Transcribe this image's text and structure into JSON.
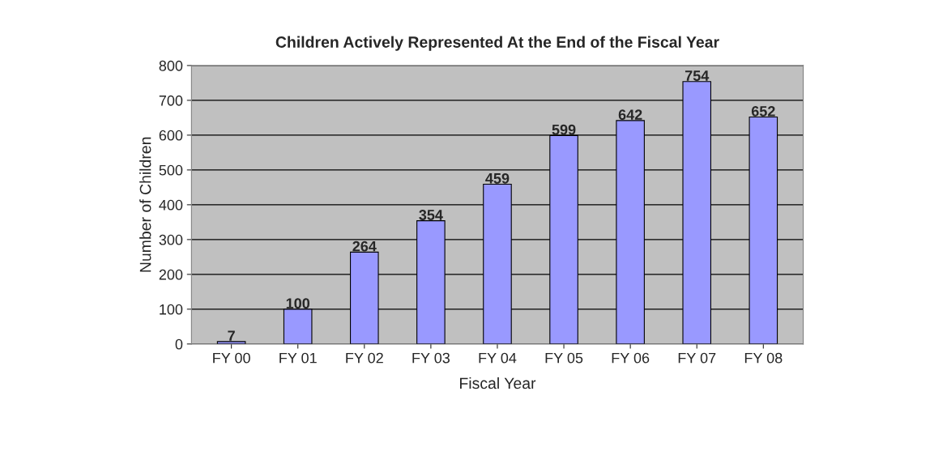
{
  "chart_data": {
    "type": "bar",
    "title": "Children Actively Represented At the End of the Fiscal Year",
    "xlabel": "Fiscal Year",
    "ylabel": "Number of Children",
    "categories": [
      "FY 00",
      "FY 01",
      "FY 02",
      "FY 03",
      "FY 04",
      "FY 05",
      "FY 06",
      "FY 07",
      "FY 08"
    ],
    "values": [
      7,
      100,
      264,
      354,
      459,
      599,
      642,
      754,
      652
    ],
    "color": "#9999ff",
    "ylim": [
      0,
      800
    ],
    "yticks": [
      0,
      100,
      200,
      300,
      400,
      500,
      600,
      700,
      800
    ],
    "grid": "y",
    "data_labels": true,
    "legend": false
  }
}
